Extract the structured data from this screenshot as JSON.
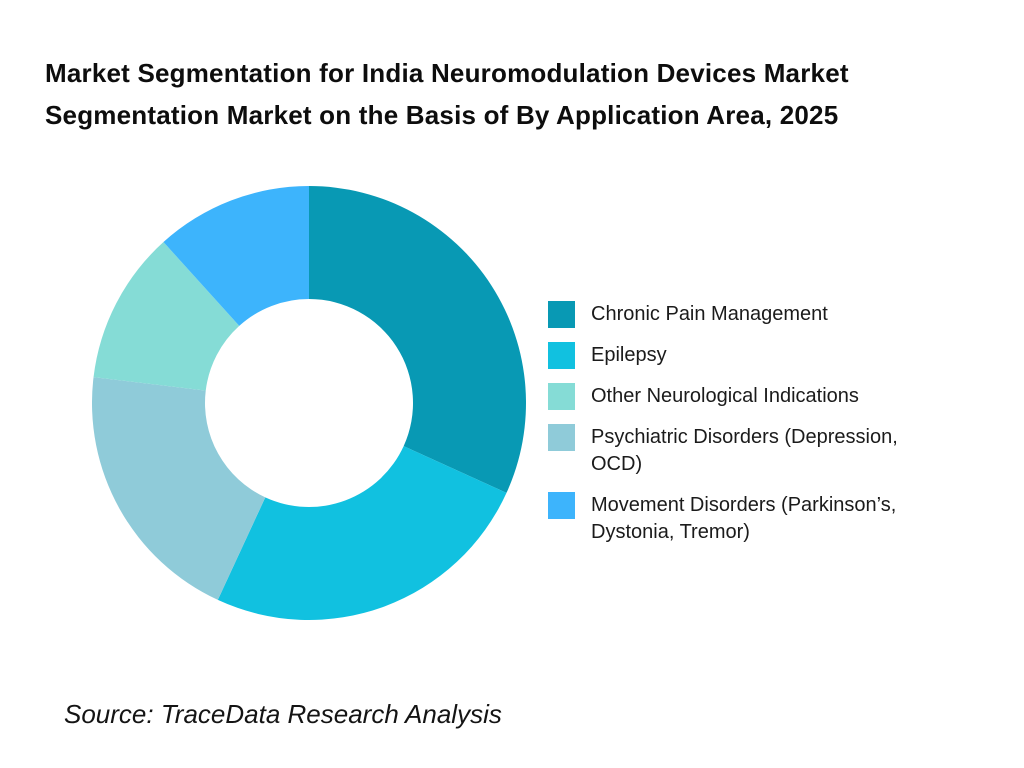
{
  "page": {
    "title": "Market Segmentation for India Neuromodulation Devices Market\nSegmentation Market on the Basis of By Application Area, 2025",
    "source_note": "Source: TraceData Research Analysis",
    "background_color": "#ffffff"
  },
  "chart_data": {
    "type": "pie",
    "subtype": "donut",
    "title": "Market Segmentation for India Neuromodulation Devices Market Segmentation Market on the Basis of By Application Area, 2025",
    "direction": "clockwise",
    "start_angle_deg": 0,
    "inner_radius_ratio": 0.48,
    "slices": [
      {
        "label": "Chronic Pain Management",
        "value_pct": 31.8,
        "color": "#0899B4"
      },
      {
        "label": "Epilepsy",
        "value_pct": 25.1,
        "color": "#11C1E0"
      },
      {
        "label": "Psychiatric Disorders (Depression,\nOCD)",
        "value_pct": 20.0,
        "color": "#8FCBD9"
      },
      {
        "label": "Other Neurological Indications",
        "value_pct": 11.4,
        "color": "#85DCD6"
      },
      {
        "label": "Movement Disorders (Parkinson’s,\nDystonia, Tremor)",
        "value_pct": 11.7,
        "color": "#3DB4FC"
      }
    ],
    "legend": {
      "position": "right",
      "display_order_slice_indices": [
        0,
        1,
        3,
        2,
        4
      ]
    }
  }
}
